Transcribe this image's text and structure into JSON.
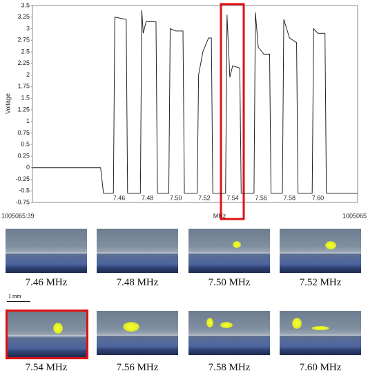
{
  "chart_data": {
    "type": "line",
    "y_label": "Voltage",
    "x_label": "MHz",
    "annotations": [
      "1005065:39",
      "1005065"
    ],
    "x": [
      7.399,
      7.447,
      7.449,
      7.456,
      7.457,
      7.465,
      7.466,
      7.475,
      7.476,
      7.477,
      7.479,
      7.486,
      7.487,
      7.495,
      7.496,
      7.5,
      7.505,
      7.506,
      7.515,
      7.516,
      7.519,
      7.523,
      7.525,
      7.526,
      7.535,
      7.536,
      7.538,
      7.54,
      7.545,
      7.546,
      7.555,
      7.556,
      7.558,
      7.562,
      7.566,
      7.567,
      7.575,
      7.576,
      7.58,
      7.585,
      7.586,
      7.596,
      7.597,
      7.6,
      7.605,
      7.606,
      7.628
    ],
    "series": [
      {
        "name": "Voltage",
        "color": "#222222",
        "values": [
          0,
          0,
          -0.55,
          -0.55,
          3.25,
          3.2,
          -0.55,
          -0.55,
          3.4,
          2.9,
          3.15,
          3.15,
          -0.55,
          -0.55,
          3.0,
          2.95,
          2.95,
          -0.55,
          -0.55,
          2.0,
          2.5,
          2.8,
          2.8,
          -0.55,
          -0.55,
          3.3,
          1.95,
          2.2,
          2.15,
          -0.55,
          -0.55,
          3.35,
          2.6,
          2.45,
          2.45,
          -0.55,
          -0.55,
          3.2,
          2.8,
          2.7,
          -0.55,
          -0.55,
          3.0,
          2.9,
          2.9,
          -0.55,
          -0.55
        ]
      }
    ],
    "xlim": [
      7.399,
      7.628
    ],
    "xticks": [
      7.46,
      7.48,
      {
        "value": 7.5,
        "label": "7.50"
      },
      7.52,
      7.54,
      7.56,
      7.58,
      {
        "value": 7.6,
        "label": "7.60"
      }
    ],
    "ylim": [
      -0.75,
      3.5
    ],
    "yticks": [
      -0.75,
      -0.5,
      -0.25,
      0,
      0.25,
      {
        "value": 0.5,
        "label": "0.5"
      },
      0.75,
      1,
      1.25,
      {
        "value": 1.5,
        "label": "1.5"
      },
      1.75,
      2,
      2.25,
      {
        "value": 2.5,
        "label": "2.5"
      },
      2.75,
      3,
      3.25,
      {
        "value": 3.5,
        "label": "3.5"
      }
    ],
    "grid": false
  },
  "images": [
    {
      "caption": "7.46 MHz"
    },
    {
      "caption": "7.48 MHz"
    },
    {
      "caption": "7.50 MHz"
    },
    {
      "caption": "7.52 MHz"
    },
    {
      "caption": "7.54 MHz"
    },
    {
      "caption": "7.56 MHz"
    },
    {
      "caption": "7.58 MHz"
    },
    {
      "caption": "7.60 MHz"
    }
  ],
  "scale_bar": "1 mm"
}
